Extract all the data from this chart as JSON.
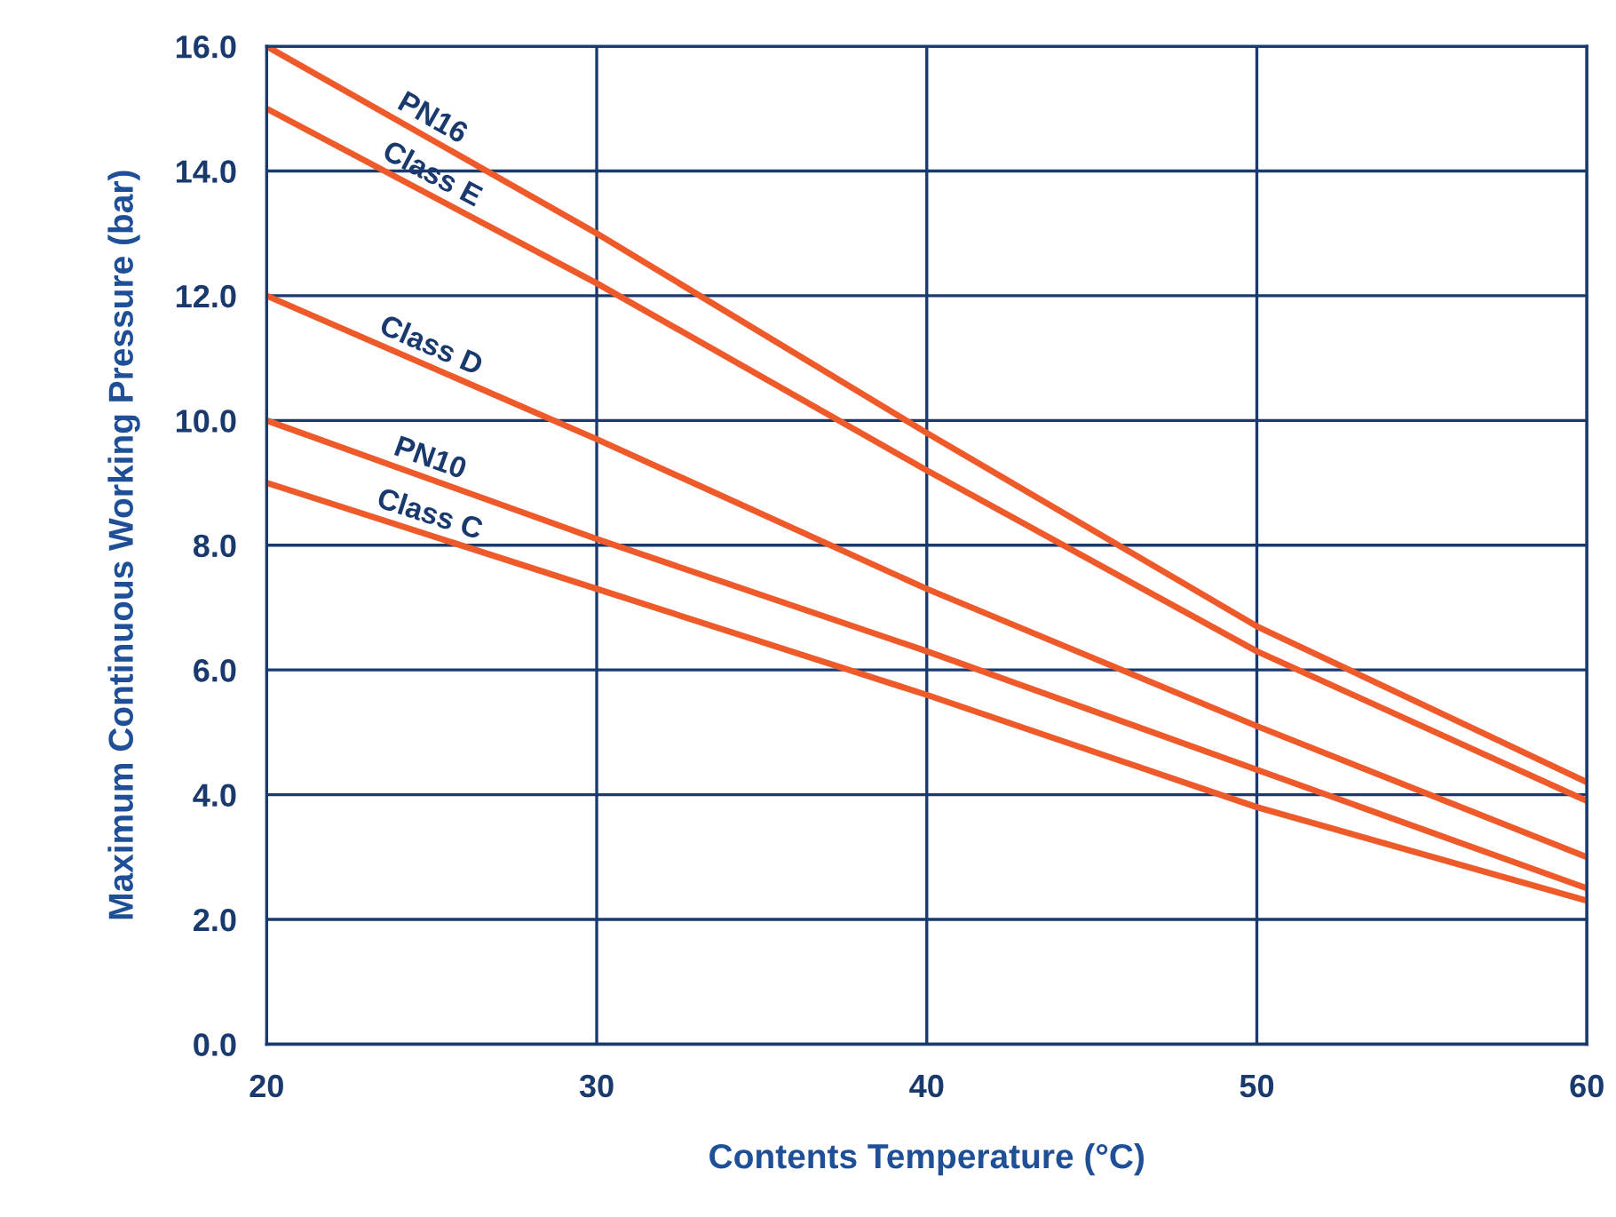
{
  "chart_data": {
    "type": "line",
    "xlabel": "Contents Temperature (°C)",
    "ylabel": "Maximum Continuous Working Pressure (bar)",
    "xlim": [
      20,
      60
    ],
    "ylim": [
      0,
      16
    ],
    "xticks": [
      20,
      30,
      40,
      50,
      60
    ],
    "yticks": [
      {
        "value": 0,
        "label": "0.0"
      },
      {
        "value": 2,
        "label": "2.0"
      },
      {
        "value": 4,
        "label": "4.0"
      },
      {
        "value": 6,
        "label": "6.0"
      },
      {
        "value": 8,
        "label": "8.0"
      },
      {
        "value": 10,
        "label": "10.0"
      },
      {
        "value": 12,
        "label": "12.0"
      },
      {
        "value": 14,
        "label": "14.0"
      },
      {
        "value": 16,
        "label": "16.0"
      }
    ],
    "grid": true,
    "marker": "none",
    "line_style": "solid",
    "x": [
      20,
      30,
      40,
      50,
      60
    ],
    "series": [
      {
        "name": "PN16",
        "color": "#ee5a2a",
        "values": [
          16.0,
          13.0,
          9.8,
          6.7,
          4.2
        ]
      },
      {
        "name": "Class E",
        "color": "#ee5a2a",
        "values": [
          15.0,
          12.2,
          9.2,
          6.3,
          3.9
        ]
      },
      {
        "name": "Class D",
        "color": "#ee5a2a",
        "values": [
          12.0,
          9.7,
          7.3,
          5.1,
          3.0
        ]
      },
      {
        "name": "PN10",
        "color": "#ee5a2a",
        "values": [
          10.0,
          8.1,
          6.3,
          4.4,
          2.5
        ]
      },
      {
        "name": "Class C",
        "color": "#ee5a2a",
        "values": [
          9.0,
          7.3,
          5.6,
          3.8,
          2.3
        ]
      }
    ]
  }
}
